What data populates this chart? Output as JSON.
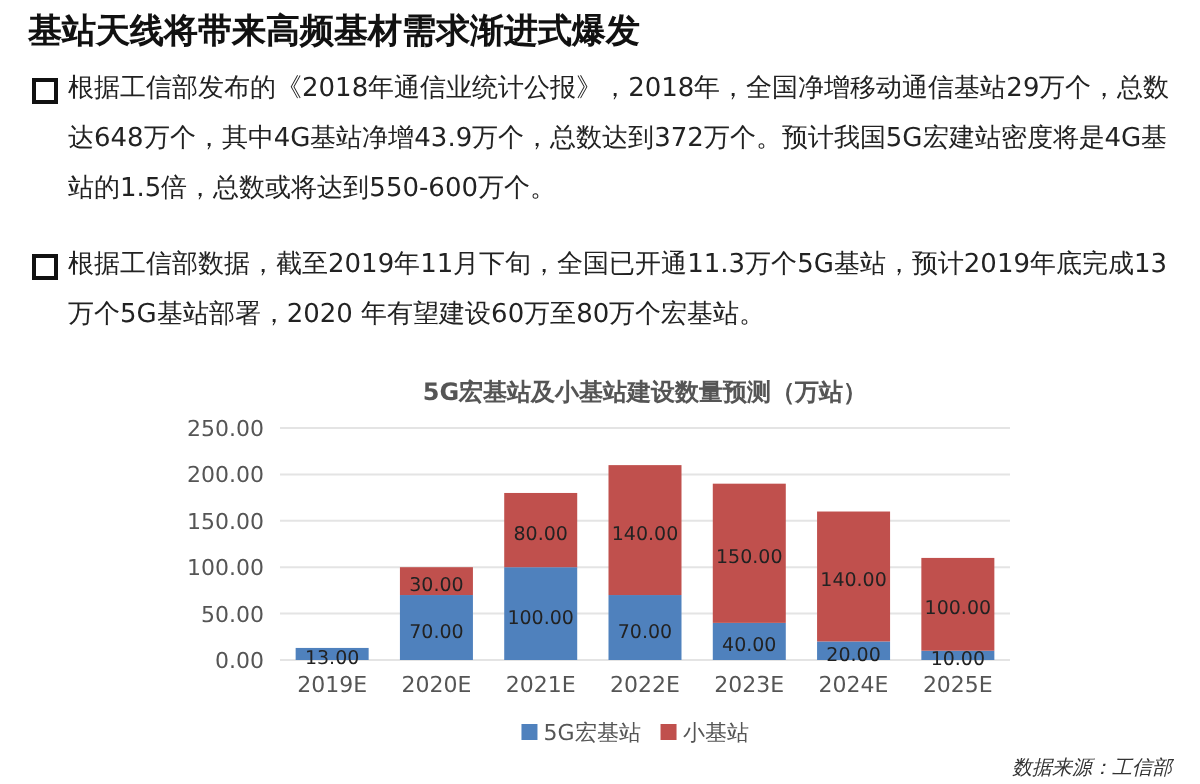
{
  "chart_data": {
    "type": "bar",
    "title": "5G宏基站及小基站建设数量预测（万站）",
    "categories": [
      "2019E",
      "2020E",
      "2021E",
      "2022E",
      "2023E",
      "2024E",
      "2025E"
    ],
    "stacked": true,
    "series": [
      {
        "name": "5G宏基站",
        "color": "#4f81bd",
        "values": [
          13,
          70,
          100,
          70,
          40,
          20,
          10
        ],
        "value_labels": [
          "13.00",
          "70.00",
          "100.00",
          "70.00",
          "40.00",
          "20.00",
          "10.00"
        ]
      },
      {
        "name": "小基站",
        "color": "#c0504d",
        "values": [
          null,
          30,
          80,
          140,
          150,
          140,
          100
        ],
        "value_labels": [
          null,
          "30.00",
          "80.00",
          "140.00",
          "150.00",
          "140.00",
          "100.00"
        ]
      }
    ],
    "ylim": [
      0,
      250
    ],
    "yticks": [
      {
        "value": 0,
        "label": "0.00"
      },
      {
        "value": 50,
        "label": "50.00"
      },
      {
        "value": 100,
        "label": "100.00"
      },
      {
        "value": 150,
        "label": "150.00"
      },
      {
        "value": 200,
        "label": "200.00"
      },
      {
        "value": 250,
        "label": "250.00"
      }
    ],
    "grid": "y",
    "legend": "bottom",
    "annotations": [
      "基站天线将带来高频基材需求渐进式爆发",
      "根据工信部发布的《2018年通信业统计公报》，2018年，全国净增移动通信基站29万个，总数达648万个，其中4G基站净增43.9万个，总数达到372万个。预计我国5G宏建站密度将是4G基站的1.5倍，总数或将达到550-600万个。",
      "根据工信部数据，截至2019年11月下旬，全国已开通11.3万个5G基站，预计2019年底完成13万个5G基站部署，2020 年有望建设60万至80万个宏基站。",
      "数据来源：工信部"
    ]
  }
}
